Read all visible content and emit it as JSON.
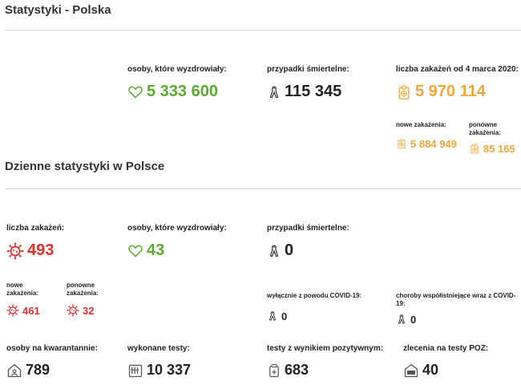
{
  "page_title": "Statystyki - Polska",
  "daily_title": "Dzienne statystyki w Polsce",
  "colors": {
    "green": "#5aab2f",
    "orange": "#f0a73a",
    "red": "#d9322b",
    "dark": "#222222"
  },
  "totals": {
    "recovered": {
      "label": "osoby, które wyzdrowiały:",
      "value": "5 333 600",
      "icon": "heart-icon"
    },
    "deaths": {
      "label": "przypadki śmiertelne:",
      "value": "115 345",
      "icon": "ribbon-icon"
    },
    "infections": {
      "label": "liczba zakażeń od 4 marca 2020:",
      "value": "5 970 114",
      "icon": "clipboard-plus-icon"
    },
    "new_infections": {
      "label": "nowe zakażenia:",
      "value": "5 884 949",
      "icon": "clipboard-plus-icon"
    },
    "reinfections": {
      "label": "ponowne zakażenia:",
      "value": "85 165",
      "icon": "clipboard-plus-icon"
    }
  },
  "daily": {
    "infections": {
      "label": "liczba zakażeń:",
      "value": "493",
      "icon": "virus-icon"
    },
    "recovered": {
      "label": "osoby, które wyzdrowiały:",
      "value": "43",
      "icon": "heart-icon"
    },
    "deaths": {
      "label": "przypadki śmiertelne:",
      "value": "0",
      "icon": "ribbon-icon"
    },
    "new_infections": {
      "label": "nowe zakażenia:",
      "value": "461",
      "icon": "virus-icon"
    },
    "reinfections": {
      "label": "ponowne zakażenia:",
      "value": "32",
      "icon": "virus-icon"
    },
    "covid_only_deaths": {
      "label": "wyłącznie z powodu COVID-19:",
      "value": "0",
      "icon": "ribbon-icon"
    },
    "comorbid_deaths": {
      "label": "choroby współistniejące wraz z COVID-19:",
      "value": "0",
      "icon": "ribbon-icon"
    },
    "quarantine": {
      "label": "osoby na kwarantannie:",
      "value": "789",
      "icon": "house-icon"
    },
    "tests_done": {
      "label": "wykonane testy:",
      "value": "10 337",
      "icon": "test-tubes-icon"
    },
    "positive_tests": {
      "label": "testy z wynikiem pozytywnym:",
      "value": "683",
      "icon": "vial-plus-icon"
    },
    "poz_orders": {
      "label": "zlecenia na testy POZ:",
      "value": "40",
      "icon": "poz-icon"
    }
  }
}
